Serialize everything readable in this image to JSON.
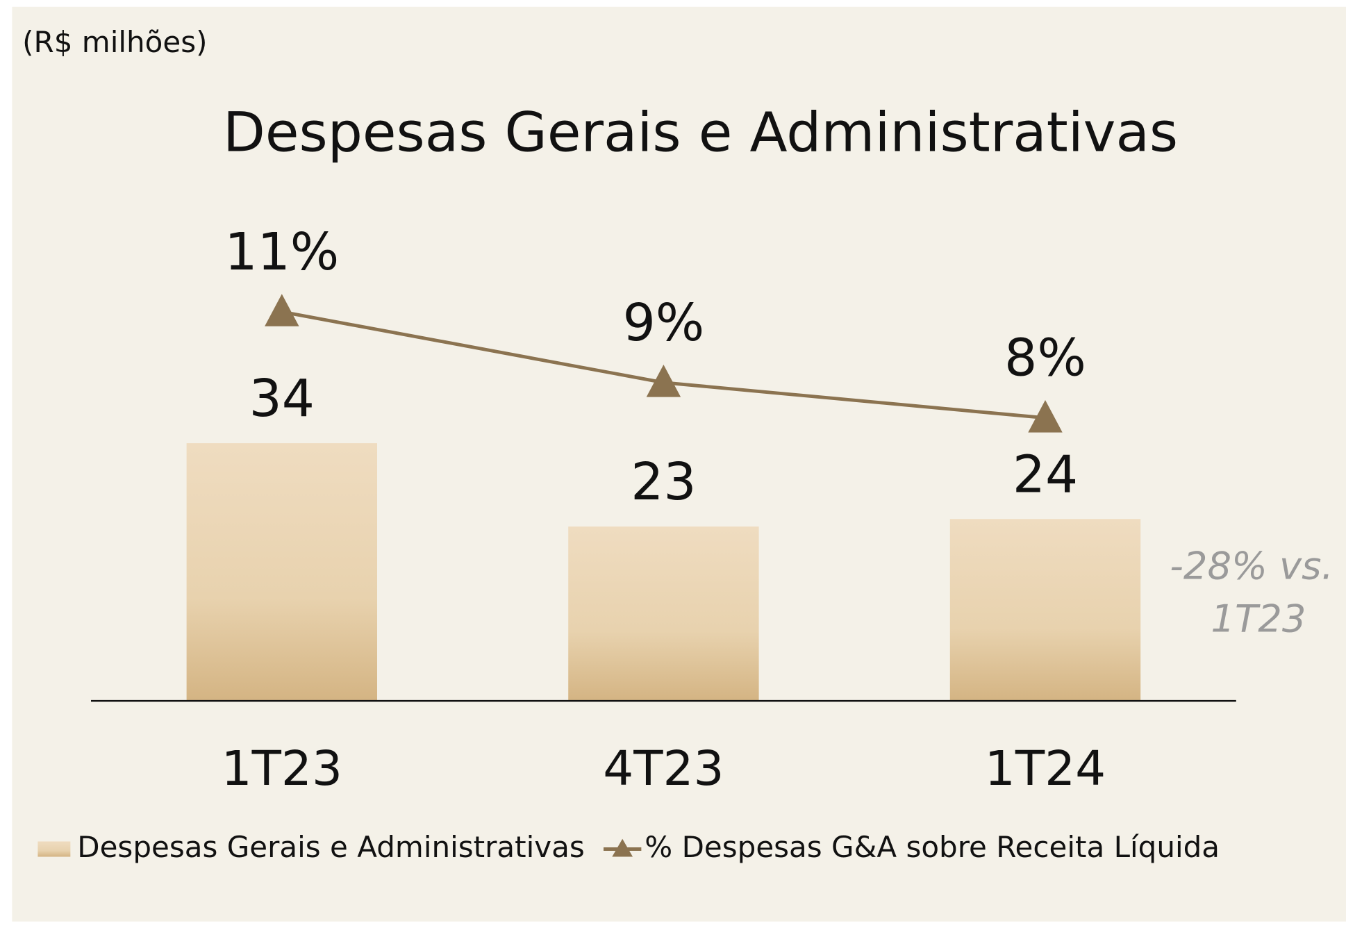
{
  "chart_data": {
    "type": "bar+line",
    "subtitle": "(R$ milhões)",
    "title": "Despesas Gerais e Administrativas",
    "categories": [
      "1T23",
      "4T23",
      "1T24"
    ],
    "series": [
      {
        "name": "Despesas Gerais e Administrativas",
        "type": "bar",
        "color": "#e3c9a0",
        "values": [
          34,
          23,
          24
        ]
      },
      {
        "name": "% Despesas G&A sobre Receita Líquida",
        "type": "line",
        "axis": "y2",
        "color": "#8b7350",
        "values": [
          11,
          9,
          8
        ],
        "value_labels": [
          "11%",
          "9%",
          "8%"
        ]
      }
    ],
    "ylim": [
      0,
      70
    ],
    "y2lim": [
      0,
      15
    ],
    "annotation": [
      "-28% vs.",
      "1T23"
    ],
    "legend": "bottom"
  }
}
